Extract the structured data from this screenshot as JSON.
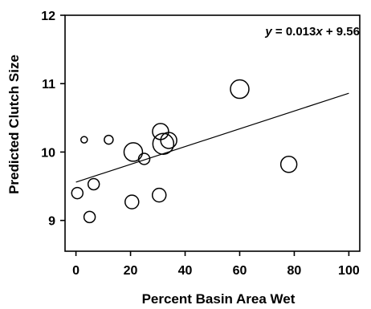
{
  "chart_data": {
    "type": "scatter",
    "title": "",
    "xlabel": "Percent Basin Area Wet",
    "ylabel": "Predicted Clutch Size",
    "xlim": [
      -4,
      104
    ],
    "ylim": [
      8.55,
      12
    ],
    "x_ticks": [
      0,
      20,
      40,
      60,
      80,
      100
    ],
    "y_ticks": [
      9,
      10,
      11,
      12
    ],
    "grid": false,
    "annotation": {
      "y_label": "y",
      "equals": " = 0.013",
      "x_label": "x",
      "rest": " + 9.56"
    },
    "regression": {
      "slope": 0.013,
      "intercept": 9.56,
      "x_range": [
        0,
        100
      ]
    },
    "points": [
      {
        "x": 0.5,
        "y": 9.4,
        "size": 2
      },
      {
        "x": 3,
        "y": 10.18,
        "size": 1
      },
      {
        "x": 5,
        "y": 9.05,
        "size": 2
      },
      {
        "x": 6.5,
        "y": 9.53,
        "size": 2
      },
      {
        "x": 12,
        "y": 10.18,
        "size": 1.5
      },
      {
        "x": 20.5,
        "y": 9.27,
        "size": 2.5
      },
      {
        "x": 21,
        "y": 10.0,
        "size": 3.5
      },
      {
        "x": 25,
        "y": 9.9,
        "size": 2
      },
      {
        "x": 30.5,
        "y": 9.37,
        "size": 2.5
      },
      {
        "x": 31,
        "y": 10.3,
        "size": 3
      },
      {
        "x": 32,
        "y": 10.12,
        "size": 4
      },
      {
        "x": 34,
        "y": 10.17,
        "size": 3
      },
      {
        "x": 60,
        "y": 10.92,
        "size": 3.5
      },
      {
        "x": 78,
        "y": 9.82,
        "size": 3
      }
    ],
    "colors": {
      "marker_stroke": "#000000",
      "line": "#000000",
      "background": "#ffffff"
    }
  }
}
